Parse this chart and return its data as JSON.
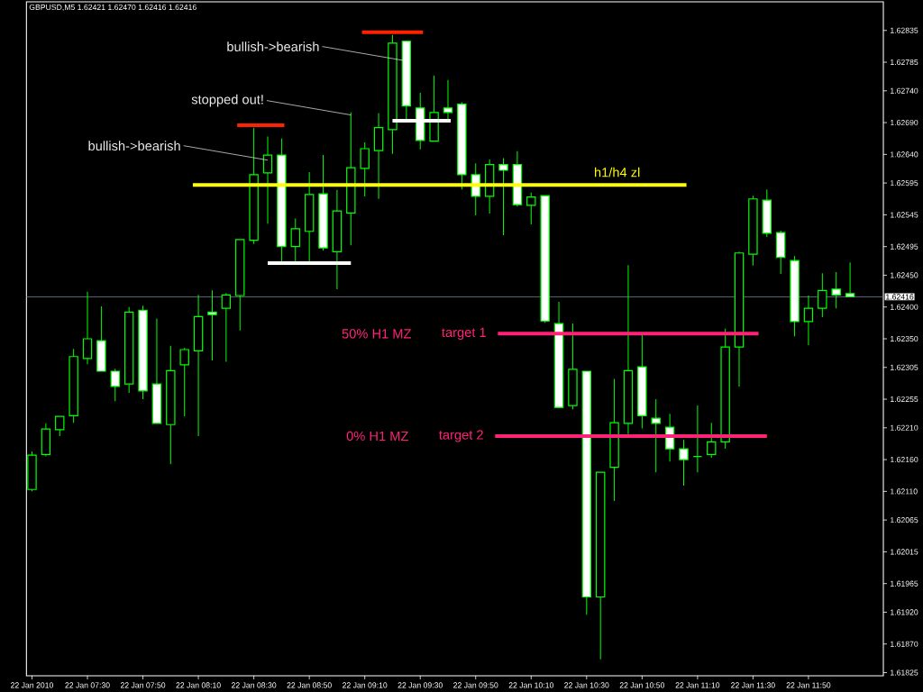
{
  "chart_data": {
    "type": "candlestick",
    "title": "GBPUSD,M5  1.62421 1.62470 1.62416 1.62416",
    "color": "#00ff00",
    "x": [
      "2010-01-22T07:10",
      "2010-01-22T07:15",
      "2010-01-22T07:20",
      "2010-01-22T07:25",
      "2010-01-22T07:30",
      "2010-01-22T07:35",
      "2010-01-22T07:40",
      "2010-01-22T07:45",
      "2010-01-22T07:50",
      "2010-01-22T07:55",
      "2010-01-22T08:00",
      "2010-01-22T08:05",
      "2010-01-22T08:10",
      "2010-01-22T08:15",
      "2010-01-22T08:20",
      "2010-01-22T08:25",
      "2010-01-22T08:30",
      "2010-01-22T08:35",
      "2010-01-22T08:40",
      "2010-01-22T08:45",
      "2010-01-22T08:50",
      "2010-01-22T08:55",
      "2010-01-22T09:00",
      "2010-01-22T09:05",
      "2010-01-22T09:10",
      "2010-01-22T09:15",
      "2010-01-22T09:20",
      "2010-01-22T09:25",
      "2010-01-22T09:30",
      "2010-01-22T09:35",
      "2010-01-22T09:40",
      "2010-01-22T09:45",
      "2010-01-22T09:50",
      "2010-01-22T09:55",
      "2010-01-22T10:00",
      "2010-01-22T10:05",
      "2010-01-22T10:10",
      "2010-01-22T10:15",
      "2010-01-22T10:20",
      "2010-01-22T10:25",
      "2010-01-22T10:30",
      "2010-01-22T10:35",
      "2010-01-22T10:40",
      "2010-01-22T10:45",
      "2010-01-22T10:50",
      "2010-01-22T10:55",
      "2010-01-22T11:00",
      "2010-01-22T11:05",
      "2010-01-22T11:10",
      "2010-01-22T11:15",
      "2010-01-22T11:20",
      "2010-01-22T11:25",
      "2010-01-22T11:30",
      "2010-01-22T11:35",
      "2010-01-22T11:40",
      "2010-01-22T11:45",
      "2010-01-22T11:50",
      "2010-01-22T11:55",
      "2010-01-22T12:00",
      "2010-01-22T12:05"
    ],
    "ohlc": [
      [
        1.62113,
        1.62173,
        1.6211,
        1.62167
      ],
      [
        1.62168,
        1.62217,
        1.62165,
        1.62208
      ],
      [
        1.62207,
        1.62228,
        1.62197,
        1.62228
      ],
      [
        1.62229,
        1.62334,
        1.62218,
        1.62322
      ],
      [
        1.62319,
        1.62424,
        1.6231,
        1.6235
      ],
      [
        1.62347,
        1.62401,
        1.62299,
        1.62299
      ],
      [
        1.62299,
        1.62303,
        1.62252,
        1.62275
      ],
      [
        1.62279,
        1.624,
        1.62265,
        1.62392
      ],
      [
        1.62395,
        1.62402,
        1.62255,
        1.62268
      ],
      [
        1.62279,
        1.62382,
        1.62217,
        1.62217
      ],
      [
        1.62215,
        1.62339,
        1.62153,
        1.623
      ],
      [
        1.62309,
        1.62336,
        1.62228,
        1.62333
      ],
      [
        1.62331,
        1.62419,
        1.62197,
        1.62385
      ],
      [
        1.62392,
        1.62426,
        1.62316,
        1.62388
      ],
      [
        1.62398,
        1.62422,
        1.62314,
        1.62419
      ],
      [
        1.62418,
        1.62506,
        1.62363,
        1.62506
      ],
      [
        1.62505,
        1.62682,
        1.62499,
        1.62608
      ],
      [
        1.62611,
        1.62668,
        1.62531,
        1.62639
      ],
      [
        1.62639,
        1.62665,
        1.6247,
        1.62495
      ],
      [
        1.62495,
        1.62539,
        1.6247,
        1.62523
      ],
      [
        1.62519,
        1.62612,
        1.6247,
        1.62577
      ],
      [
        1.62578,
        1.62639,
        1.62489,
        1.62493
      ],
      [
        1.62487,
        1.62584,
        1.62428,
        1.62551
      ],
      [
        1.62548,
        1.62706,
        1.62497,
        1.62619
      ],
      [
        1.62618,
        1.62659,
        1.62574,
        1.62649
      ],
      [
        1.62646,
        1.62705,
        1.6257,
        1.62682
      ],
      [
        1.62679,
        1.62828,
        1.62641,
        1.62815
      ],
      [
        1.62818,
        1.62818,
        1.62695,
        1.62716
      ],
      [
        1.62713,
        1.62737,
        1.62648,
        1.62662
      ],
      [
        1.62661,
        1.62764,
        1.62661,
        1.62706
      ],
      [
        1.62713,
        1.62757,
        1.62695,
        1.62706
      ],
      [
        1.62719,
        1.62722,
        1.62585,
        1.62608
      ],
      [
        1.62608,
        1.62626,
        1.62544,
        1.62574
      ],
      [
        1.62574,
        1.62632,
        1.62547,
        1.62624
      ],
      [
        1.62624,
        1.62634,
        1.62513,
        1.62615
      ],
      [
        1.62624,
        1.62645,
        1.62558,
        1.62561
      ],
      [
        1.6256,
        1.6258,
        1.6253,
        1.62573
      ],
      [
        1.62575,
        1.62575,
        1.62375,
        1.62378
      ],
      [
        1.62374,
        1.62408,
        1.62241,
        1.62242
      ],
      [
        1.62245,
        1.62374,
        1.62239,
        1.62302
      ],
      [
        1.62299,
        1.62299,
        1.61916,
        1.61944
      ],
      [
        1.61944,
        1.6214,
        1.61846,
        1.6214
      ],
      [
        1.62148,
        1.62287,
        1.62095,
        1.62218
      ],
      [
        1.62217,
        1.62466,
        1.622,
        1.623
      ],
      [
        1.62306,
        1.62356,
        1.62209,
        1.62229
      ],
      [
        1.62225,
        1.62255,
        1.6214,
        1.62217
      ],
      [
        1.62211,
        1.62232,
        1.62157,
        1.62177
      ],
      [
        1.62177,
        1.62191,
        1.62119,
        1.6216
      ],
      [
        1.62165,
        1.62245,
        1.6214,
        1.62165
      ],
      [
        1.62168,
        1.62218,
        1.62163,
        1.62188
      ],
      [
        1.62188,
        1.62366,
        1.62177,
        1.62337
      ],
      [
        1.62337,
        1.62487,
        1.62275,
        1.62485
      ],
      [
        1.62483,
        1.62575,
        1.62465,
        1.6257
      ],
      [
        1.62568,
        1.62585,
        1.6251,
        1.62516
      ],
      [
        1.62517,
        1.6252,
        1.62452,
        1.62478
      ],
      [
        1.62473,
        1.6248,
        1.62354,
        1.62377
      ],
      [
        1.62377,
        1.62418,
        1.6234,
        1.62398
      ],
      [
        1.62398,
        1.62453,
        1.62384,
        1.62426
      ],
      [
        1.62428,
        1.62455,
        1.62398,
        1.62419
      ],
      [
        1.62421,
        1.6247,
        1.62416,
        1.62416
      ]
    ],
    "series": [
      {
        "type": "line",
        "color": "#ffff00",
        "x": [
          "2010-01-22T08:08",
          "2010-01-22T11:06"
        ],
        "values": [
          1.62592,
          1.62592
        ]
      },
      {
        "type": "line",
        "color": "#ff2277",
        "x": [
          "2010-01-22T09:58",
          "2010-01-22T11:32"
        ],
        "values": [
          1.62358,
          1.62358
        ]
      },
      {
        "type": "line",
        "color": "#ff2277",
        "x": [
          "2010-01-22T09:57",
          "2010-01-22T11:35"
        ],
        "values": [
          1.62197,
          1.62197
        ]
      },
      {
        "type": "line",
        "color": "#ff2200",
        "x": [
          "2010-01-22T08:24",
          "2010-01-22T08:41"
        ],
        "values": [
          1.62686,
          1.62686
        ]
      },
      {
        "type": "line",
        "color": "#ff2200",
        "x": [
          "2010-01-22T09:09",
          "2010-01-22T09:31"
        ],
        "values": [
          1.62832,
          1.62832
        ]
      },
      {
        "type": "line",
        "color": "#ffffff",
        "x": [
          "2010-01-22T08:35",
          "2010-01-22T09:05"
        ],
        "values": [
          1.62469,
          1.62469
        ]
      },
      {
        "type": "line",
        "color": "#ffffff",
        "x": [
          "2010-01-22T09:20",
          "2010-01-22T09:41"
        ],
        "values": [
          1.62693,
          1.62693
        ]
      }
    ],
    "annotations": [
      {
        "text": "bullish->bearish",
        "x": "2010-01-22T08:35",
        "y": 1.62631
      },
      {
        "text": "stopped out!",
        "x": "2010-01-22T09:05",
        "y": 1.62702
      },
      {
        "text": "bullish->bearish",
        "x": "2010-01-22T09:25",
        "y": 1.62787
      },
      {
        "text": "h1/h4 zl",
        "x": "2010-01-22T10:41",
        "y": 1.62592
      },
      "50% H1 MZ",
      {
        "text": "target 1",
        "x": "2010-01-22T09:58",
        "y": 1.62358
      },
      "0% H1 MZ",
      {
        "text": "target 2",
        "x": "2010-01-22T09:57",
        "y": 1.62197
      }
    ],
    "ref_lines": [
      {
        "axis": "y",
        "value": 1.62416,
        "label": "1.62416",
        "color": "#708090"
      }
    ],
    "xlim": [
      "2010-01-22T07:08",
      "2010-01-22T12:17"
    ],
    "xticks": [
      {
        "value": "2010-01-22T07:10",
        "label": "22 Jan 2010"
      },
      {
        "value": "2010-01-22T07:30",
        "label": "22 Jan 07:30"
      },
      {
        "value": "2010-01-22T07:50",
        "label": "22 Jan 07:50"
      },
      {
        "value": "2010-01-22T08:10",
        "label": "22 Jan 08:10"
      },
      {
        "value": "2010-01-22T08:30",
        "label": "22 Jan 08:30"
      },
      {
        "value": "2010-01-22T08:50",
        "label": "22 Jan 08:50"
      },
      {
        "value": "2010-01-22T09:10",
        "label": "22 Jan 09:10"
      },
      {
        "value": "2010-01-22T09:30",
        "label": "22 Jan 09:30"
      },
      {
        "value": "2010-01-22T09:50",
        "label": "22 Jan 09:50"
      },
      {
        "value": "2010-01-22T10:10",
        "label": "22 Jan 10:10"
      },
      {
        "value": "2010-01-22T10:30",
        "label": "22 Jan 10:30"
      },
      {
        "value": "2010-01-22T10:50",
        "label": "22 Jan 10:50"
      },
      {
        "value": "2010-01-22T11:10",
        "label": "22 Jan 11:10"
      },
      {
        "value": "2010-01-22T11:30",
        "label": "22 Jan 11:30"
      },
      {
        "value": "2010-01-22T11:50",
        "label": "22 Jan 11:50"
      }
    ],
    "ylim": [
      1.6182,
      1.6288
    ],
    "yticks": [
      {
        "value": 1.62835,
        "label": "1.62835"
      },
      {
        "value": 1.62785,
        "label": "1.62785"
      },
      {
        "value": 1.6274,
        "label": "1.62740"
      },
      {
        "value": 1.6269,
        "label": "1.62690"
      },
      {
        "value": 1.6264,
        "label": "1.62640"
      },
      {
        "value": 1.62595,
        "label": "1.62595"
      },
      {
        "value": 1.62545,
        "label": "1.62545"
      },
      {
        "value": 1.62495,
        "label": "1.62495"
      },
      {
        "value": 1.6245,
        "label": "1.62450"
      },
      {
        "value": 1.624,
        "label": "1.62400"
      },
      {
        "value": 1.6235,
        "label": "1.62350"
      },
      {
        "value": 1.62305,
        "label": "1.62305"
      },
      {
        "value": 1.62255,
        "label": "1.62255"
      },
      {
        "value": 1.6221,
        "label": "1.62210"
      },
      {
        "value": 1.6216,
        "label": "1.62160"
      },
      {
        "value": 1.6211,
        "label": "1.62110"
      },
      {
        "value": 1.62065,
        "label": "1.62065"
      },
      {
        "value": 1.62015,
        "label": "1.62015"
      },
      {
        "value": 1.61965,
        "label": "1.61965"
      },
      {
        "value": 1.6192,
        "label": "1.61920"
      },
      {
        "value": 1.6187,
        "label": "1.61870"
      },
      {
        "value": 1.61825,
        "label": "1.61825"
      }
    ]
  }
}
